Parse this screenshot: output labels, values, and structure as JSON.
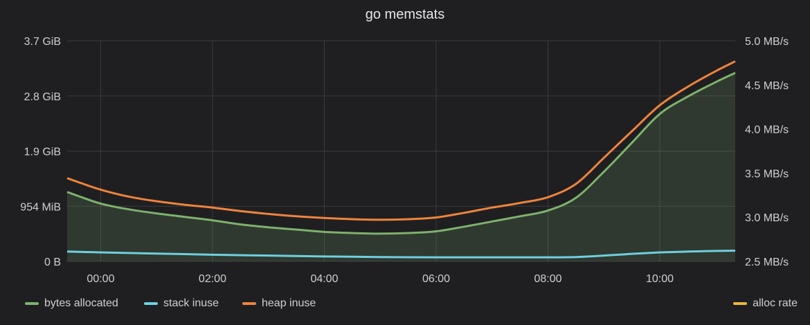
{
  "chart_data": {
    "type": "line",
    "title": "go memstats",
    "x_ticks": [
      "00:00",
      "02:00",
      "04:00",
      "06:00",
      "08:00",
      "10:00"
    ],
    "x_range_hours": [
      -0.6,
      11.35
    ],
    "y_left": {
      "unit": "MiB",
      "ticks": [
        "0 B",
        "954 MiB",
        "1.9 GiB",
        "2.8 GiB",
        "3.7 GiB"
      ],
      "range": [
        0,
        3815
      ]
    },
    "y_right": {
      "unit": "MB/s",
      "ticks": [
        "2.5 MB/s",
        "3.0 MB/s",
        "3.5 MB/s",
        "4.0 MB/s",
        "4.5 MB/s",
        "5.0 MB/s"
      ],
      "range": [
        2.5,
        5.0
      ]
    },
    "grid": true,
    "legend_position": "bottom",
    "series": [
      {
        "name": "bytes allocated",
        "color": "#7eb26d",
        "fill": true,
        "axis": "left",
        "x": [
          -0.6,
          -0.4,
          0,
          0.5,
          1,
          1.5,
          2,
          2.5,
          3,
          3.5,
          4,
          4.5,
          5,
          5.5,
          6,
          6.5,
          7,
          7.5,
          8,
          8.5,
          9,
          9.5,
          10,
          10.5,
          11,
          11.35
        ],
        "y": [
          1200,
          1130,
          1000,
          900,
          830,
          770,
          710,
          640,
          590,
          550,
          510,
          490,
          480,
          490,
          520,
          600,
          690,
          780,
          880,
          1100,
          1550,
          2050,
          2550,
          2850,
          3100,
          3260
        ]
      },
      {
        "name": "stack inuse",
        "color": "#6ed0e0",
        "fill": false,
        "axis": "left",
        "x": [
          -0.6,
          0,
          1,
          2,
          3,
          4,
          5,
          6,
          7,
          8,
          8.5,
          9,
          9.5,
          10,
          10.5,
          11,
          11.35
        ],
        "y": [
          170,
          155,
          135,
          115,
          100,
          85,
          75,
          70,
          70,
          70,
          75,
          100,
          130,
          155,
          170,
          180,
          185
        ]
      },
      {
        "name": "heap inuse",
        "color": "#ef843c",
        "fill": false,
        "axis": "left",
        "x": [
          -0.6,
          -0.4,
          0,
          0.5,
          1,
          1.5,
          2,
          2.5,
          3,
          3.5,
          4,
          4.5,
          5,
          5.5,
          6,
          6.5,
          7,
          7.5,
          8,
          8.5,
          9,
          9.5,
          10,
          10.5,
          11,
          11.35
        ],
        "y": [
          1440,
          1370,
          1240,
          1120,
          1040,
          980,
          930,
          870,
          820,
          780,
          750,
          730,
          720,
          730,
          760,
          840,
          930,
          1010,
          1110,
          1340,
          1790,
          2250,
          2700,
          3020,
          3290,
          3460
        ]
      },
      {
        "name": "alloc rate",
        "color": "#eab839",
        "fill": false,
        "axis": "right",
        "x": [],
        "y": []
      }
    ]
  }
}
